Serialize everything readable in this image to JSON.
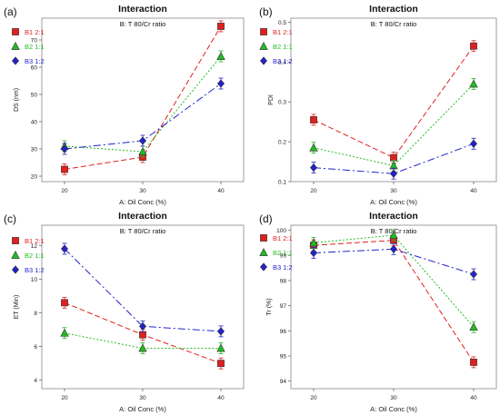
{
  "chart_data": [
    {
      "type": "line",
      "panel_label": "(a)",
      "title": "Interaction",
      "subtitle": "B: T 80/Cr ratio",
      "xlabel": "A: Oil Conc (%)",
      "ylabel": "DS (nm)",
      "x": [
        20,
        30,
        40
      ],
      "xticks": [
        "20",
        "30",
        "40"
      ],
      "ylim": [
        18,
        78
      ],
      "yticks": [
        20,
        30,
        40,
        50,
        60,
        70
      ],
      "series": [
        {
          "name": "B1 2:1",
          "color": "#e02020",
          "marker": "square",
          "values": [
            22.5,
            27,
            75
          ]
        },
        {
          "name": "B2 1:1",
          "color": "#22bb22",
          "marker": "triangle",
          "values": [
            31,
            29,
            64
          ]
        },
        {
          "name": "B3 1:2",
          "color": "#2222cc",
          "marker": "diamond",
          "values": [
            30,
            33,
            54
          ]
        }
      ]
    },
    {
      "type": "line",
      "panel_label": "(b)",
      "title": "Interaction",
      "subtitle": "B: T 80/Cr ratio",
      "xlabel": "A: Oil Conc (%)",
      "ylabel": "PDI",
      "x": [
        20,
        30,
        40
      ],
      "xticks": [
        "20",
        "30",
        "40"
      ],
      "ylim": [
        0.1,
        0.51
      ],
      "yticks": [
        0.1,
        0.2,
        0.3,
        0.4,
        0.5
      ],
      "series": [
        {
          "name": "B1 2:1",
          "color": "#e02020",
          "marker": "square",
          "values": [
            0.255,
            0.16,
            0.44
          ]
        },
        {
          "name": "B2 1:1",
          "color": "#22bb22",
          "marker": "triangle",
          "values": [
            0.185,
            0.14,
            0.345
          ]
        },
        {
          "name": "B3 1:2",
          "color": "#2222cc",
          "marker": "diamond",
          "values": [
            0.135,
            0.12,
            0.195
          ]
        }
      ]
    },
    {
      "type": "line",
      "panel_label": "(c)",
      "title": "Interaction",
      "subtitle": "B: T 80/Cr ratio",
      "xlabel": "A: Oil Conc (%)",
      "ylabel": "ET (Min)",
      "x": [
        20,
        30,
        40
      ],
      "xticks": [
        "20",
        "30",
        "40"
      ],
      "ylim": [
        3.5,
        13.2
      ],
      "yticks": [
        4,
        6,
        8,
        10,
        12
      ],
      "series": [
        {
          "name": "B1 2:1",
          "color": "#e02020",
          "marker": "square",
          "values": [
            8.6,
            6.7,
            5.0
          ]
        },
        {
          "name": "B2 1:1",
          "color": "#22bb22",
          "marker": "triangle",
          "values": [
            6.8,
            5.9,
            5.9
          ]
        },
        {
          "name": "B3 1:2",
          "color": "#2222cc",
          "marker": "diamond",
          "values": [
            11.8,
            7.2,
            6.9
          ]
        }
      ]
    },
    {
      "type": "line",
      "panel_label": "(d)",
      "title": "Interaction",
      "subtitle": "B: T 80/Cr ratio",
      "xlabel": "A: Oil Conc (%)",
      "ylabel": "Tr (%)",
      "x": [
        20,
        30,
        40
      ],
      "xticks": [
        "20",
        "30",
        "40"
      ],
      "ylim": [
        93.7,
        100.2
      ],
      "yticks": [
        94,
        95,
        96,
        97,
        98,
        99,
        100
      ],
      "series": [
        {
          "name": "B1 2:1",
          "color": "#e02020",
          "marker": "square",
          "values": [
            99.4,
            99.6,
            94.75
          ]
        },
        {
          "name": "B2 1:1",
          "color": "#22bb22",
          "marker": "triangle",
          "values": [
            99.5,
            99.8,
            96.15
          ]
        },
        {
          "name": "B3 1:2",
          "color": "#2222cc",
          "marker": "diamond",
          "values": [
            99.1,
            99.25,
            98.25
          ]
        }
      ]
    }
  ]
}
